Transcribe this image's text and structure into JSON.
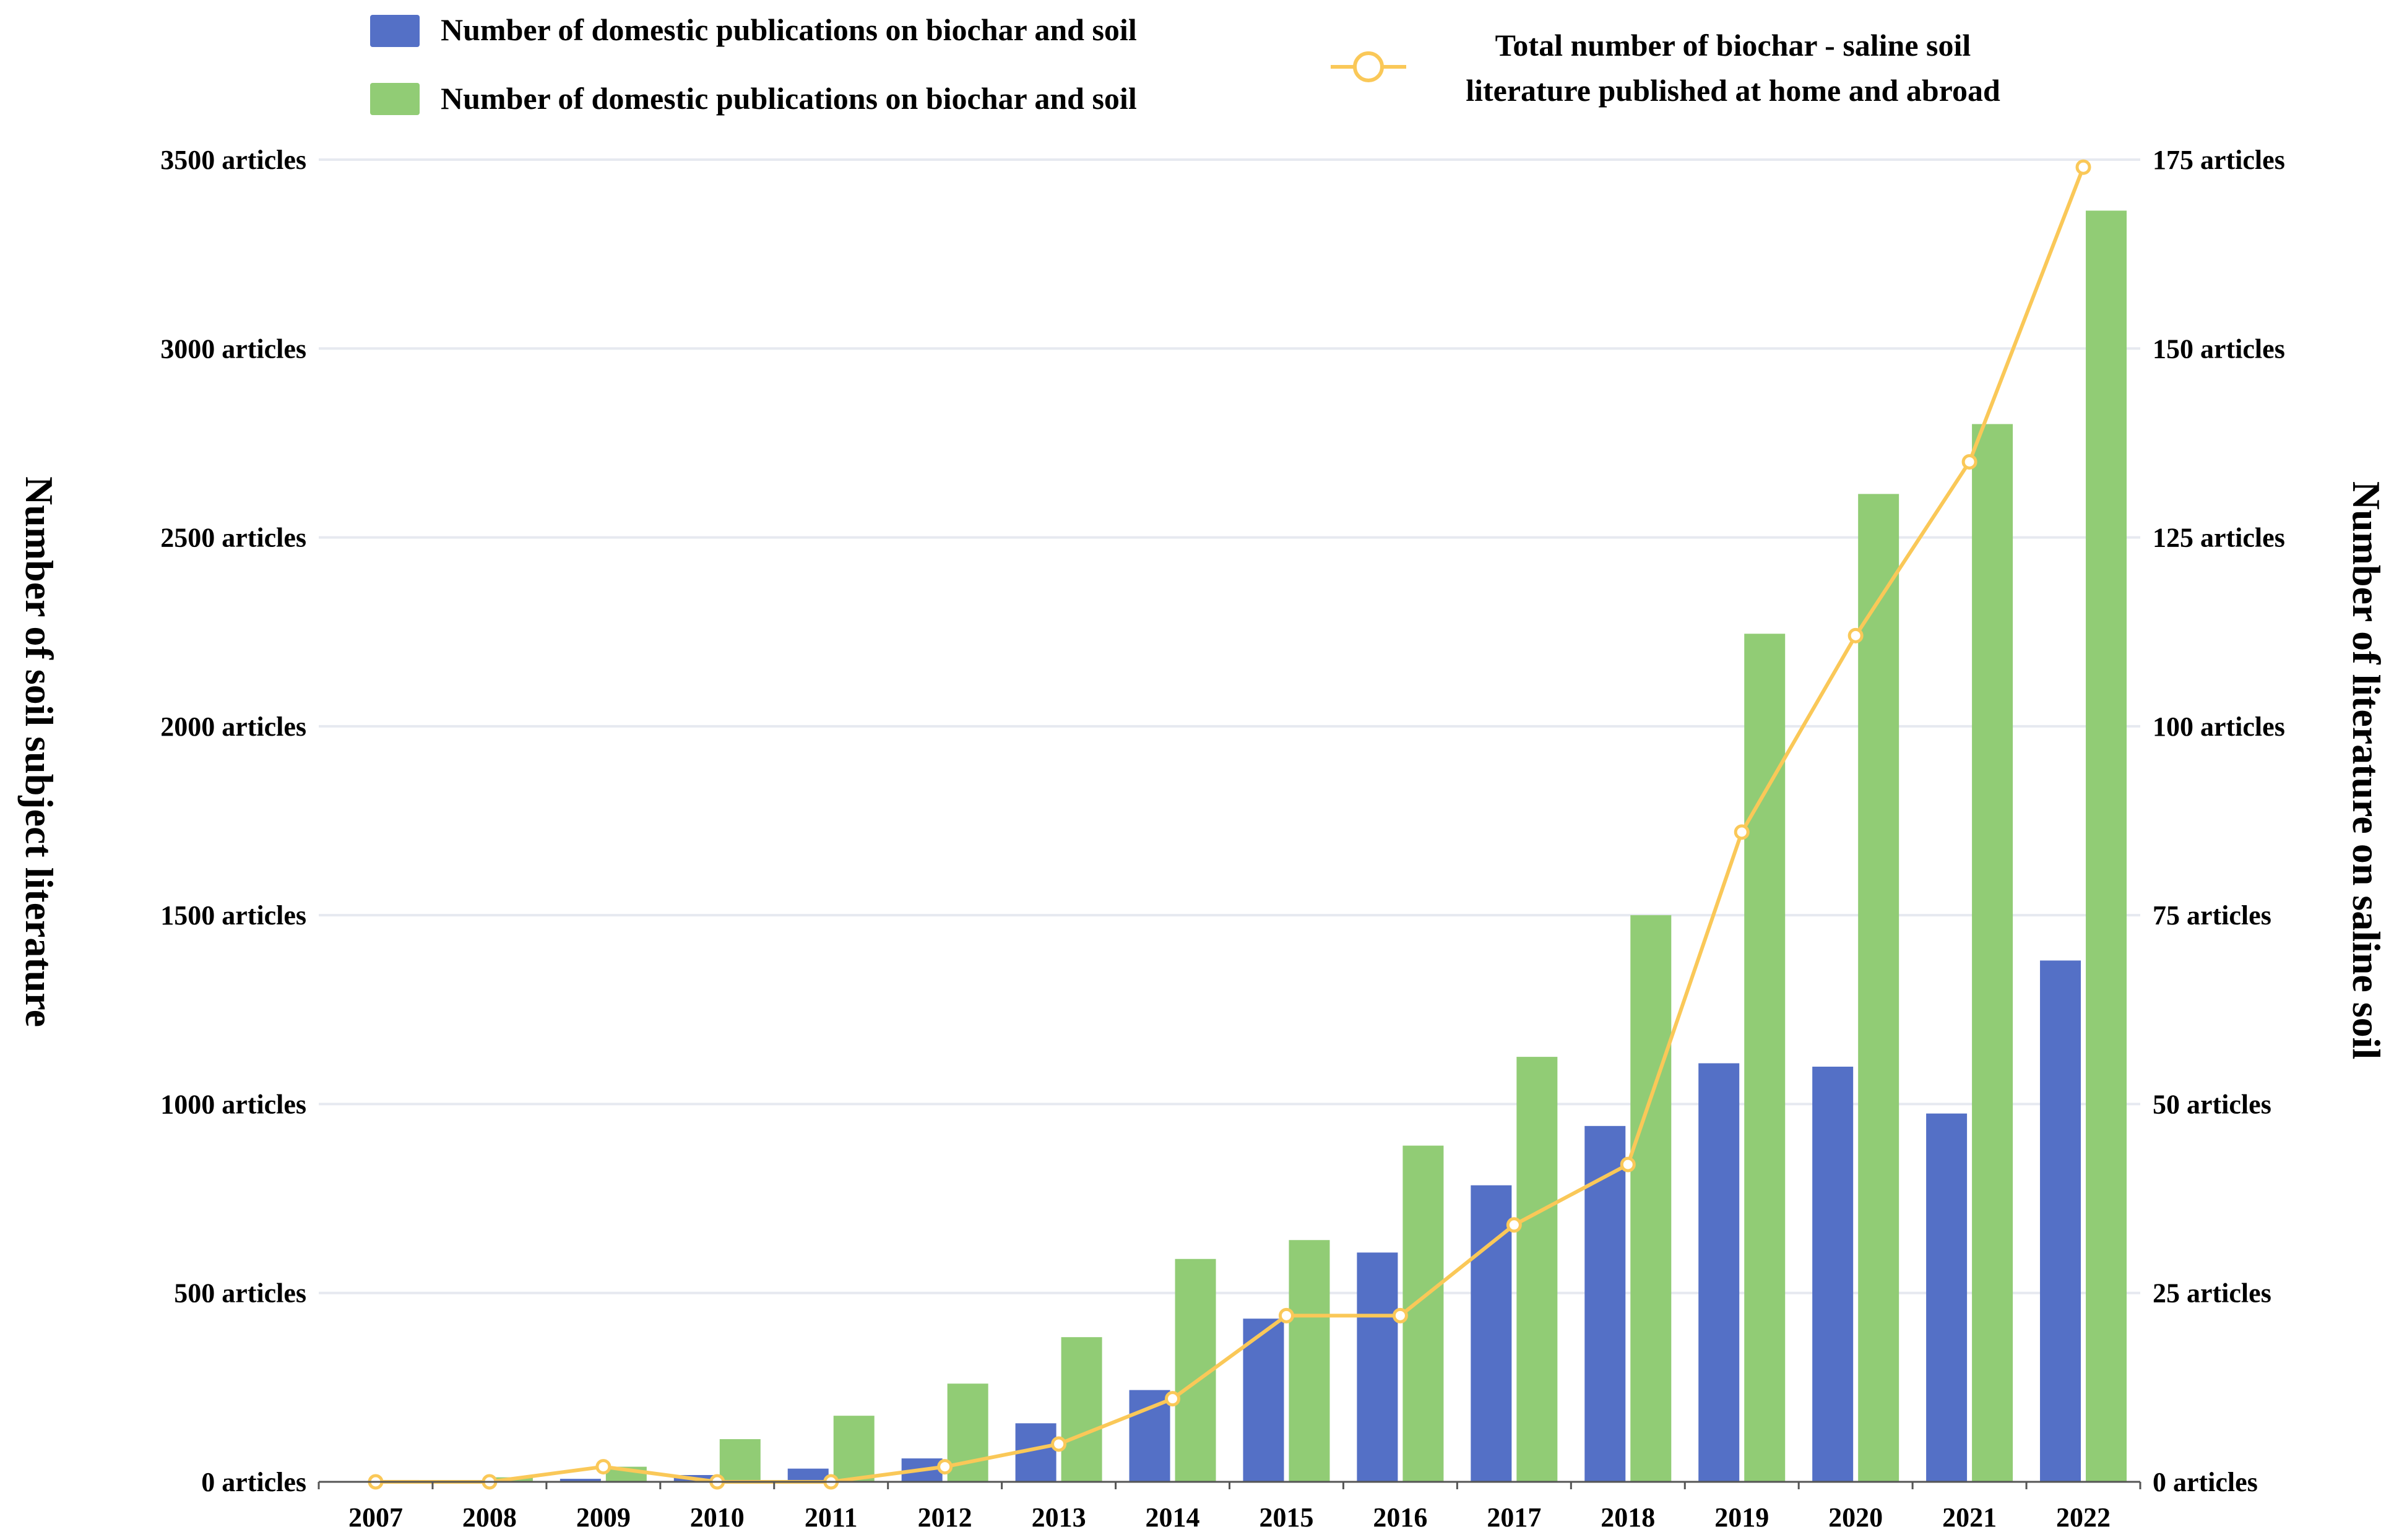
{
  "chart_data": {
    "type": "bar",
    "categories": [
      "2007",
      "2008",
      "2009",
      "2010",
      "2011",
      "2012",
      "2013",
      "2014",
      "2015",
      "2016",
      "2017",
      "2018",
      "2019",
      "2020",
      "2021",
      "2022"
    ],
    "series": [
      {
        "name": "Number of domestic publications on biochar and soil",
        "kind": "bar",
        "axis": "left",
        "color": "#5470c6",
        "values": [
          2,
          4,
          8,
          18,
          35,
          62,
          155,
          243,
          432,
          607,
          785,
          942,
          1108,
          1099,
          975,
          1380
        ]
      },
      {
        "name": "Number of domestic publications on biochar and soil",
        "kind": "bar",
        "axis": "left",
        "color": "#91cc75",
        "values": [
          5,
          12,
          40,
          113,
          175,
          260,
          383,
          590,
          640,
          890,
          1125,
          1500,
          2245,
          2615,
          2800,
          3365
        ]
      },
      {
        "name": "Total number of biochar - saline soil literature published at home and abroad",
        "kind": "line",
        "axis": "right",
        "color": "#fac858",
        "values": [
          0,
          0,
          2,
          0,
          0,
          2,
          5,
          11,
          22,
          22,
          34,
          42,
          86,
          112,
          135,
          174
        ]
      }
    ],
    "left_axis": {
      "title": "Number of soil subject literature",
      "ylim": [
        0,
        3500
      ],
      "ticks": [
        {
          "value": 0,
          "label": "0 articles"
        },
        {
          "value": 500,
          "label": "500 articles"
        },
        {
          "value": 1000,
          "label": "1000 articles"
        },
        {
          "value": 1500,
          "label": "1500 articles"
        },
        {
          "value": 2000,
          "label": "2000 articles"
        },
        {
          "value": 2500,
          "label": "2500 articles"
        },
        {
          "value": 3000,
          "label": "3000 articles"
        },
        {
          "value": 3500,
          "label": "3500 articles"
        }
      ]
    },
    "right_axis": {
      "title": "Number of literature on saline soil",
      "ylim": [
        0,
        175
      ],
      "ticks": [
        {
          "value": 0,
          "label": "0 articles"
        },
        {
          "value": 25,
          "label": "25 articles"
        },
        {
          "value": 50,
          "label": "50 articles"
        },
        {
          "value": 75,
          "label": "75 articles"
        },
        {
          "value": 100,
          "label": "100 articles"
        },
        {
          "value": 125,
          "label": "125 articles"
        },
        {
          "value": 150,
          "label": "150 articles"
        },
        {
          "value": 175,
          "label": "175 articles"
        }
      ]
    },
    "legend": {
      "placement": "top",
      "line_label_lines": [
        "Total number of biochar - saline soil",
        "literature published at home and abroad"
      ]
    },
    "grid": true
  }
}
